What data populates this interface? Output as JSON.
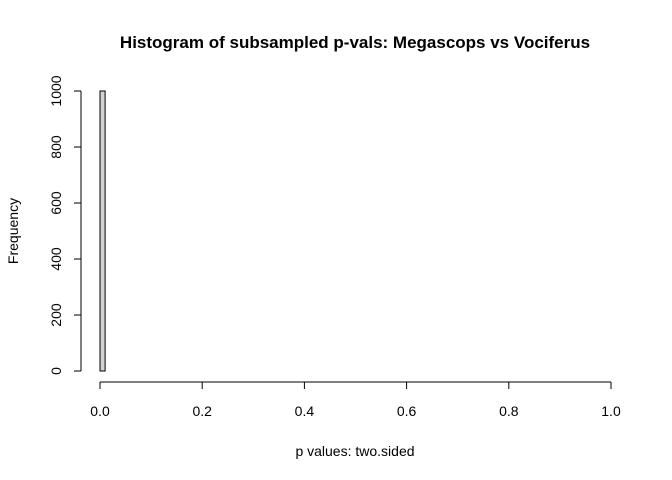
{
  "chart_data": {
    "type": "bar",
    "subtype": "histogram",
    "title": "Histogram of subsampled p-vals: Megascops vs Vociferus",
    "xlabel": "p values: two.sided",
    "ylabel": "Frequency",
    "xlim": [
      0,
      1
    ],
    "ylim": [
      0,
      1000
    ],
    "bin_width": 0.01,
    "bins_start": 0,
    "counts": [
      1000
    ],
    "x_ticks": [
      0,
      0.2,
      0.4,
      0.6,
      0.8,
      1
    ],
    "x_tick_labels": [
      "0.0",
      "0.2",
      "0.4",
      "0.6",
      "0.8",
      "1.0"
    ],
    "y_ticks": [
      0,
      200,
      400,
      600,
      800,
      1000
    ],
    "y_tick_labels": [
      "0",
      "200",
      "400",
      "600",
      "800",
      "1000"
    ],
    "bar_fill": "#d3d3d3",
    "bar_stroke": "#000000",
    "grid": false,
    "legend": "none"
  }
}
